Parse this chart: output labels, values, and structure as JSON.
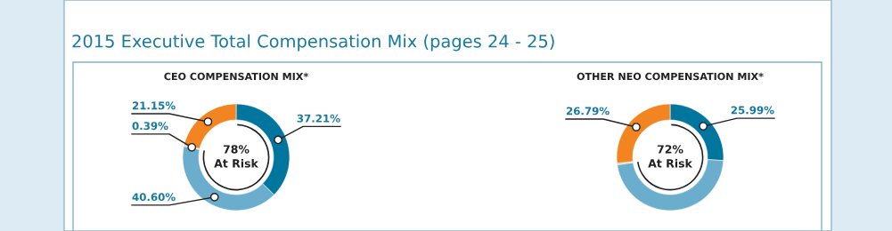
{
  "chart_data": [
    {
      "type": "donut",
      "title": "2015 Executive Total Compensation Mix (pages 24 - 25)",
      "subtitle": "CEO COMPENSATION MIX*",
      "categories": [
        null,
        null,
        null,
        null
      ],
      "values": [
        37.21,
        40.6,
        0.39,
        21.15
      ],
      "colors": [
        "#00759e",
        "#6aadcc",
        "#c8c8c8",
        "#f28522"
      ],
      "value_labels": [
        "37.21%",
        "40.60%",
        "0.39%",
        "21.15%"
      ],
      "annotations": [
        "78%\nAt Risk"
      ]
    },
    {
      "type": "donut",
      "subtitle": "OTHER NEO COMPENSATION MIX*",
      "categories": [
        null,
        null,
        null,
        null
      ],
      "values": [
        25.99,
        46.72,
        0.5,
        26.79
      ],
      "colors": [
        "#00759e",
        "#6aadcc",
        "#c8c8c8",
        "#f28522"
      ],
      "value_labels": [
        "25.99%",
        null,
        null,
        "26.79%"
      ],
      "annotations": [
        "72%\nAt Risk"
      ]
    }
  ]
}
